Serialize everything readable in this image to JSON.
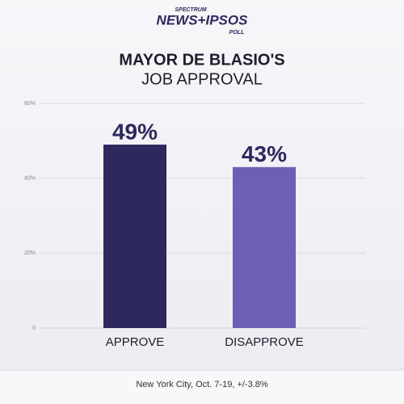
{
  "logo": {
    "top": "SPECTRUM",
    "main": "NEWS+IPSOS",
    "bottom": "POLL"
  },
  "chart_data": {
    "type": "bar",
    "title": "MAYOR DE BLASIO'S",
    "subtitle": "JOB APPROVAL",
    "categories": [
      "APPROVE",
      "DISAPPROVE"
    ],
    "values": [
      49,
      43
    ],
    "value_labels": [
      "49%",
      "43%"
    ],
    "colors": [
      "#2d295f",
      "#6c5fb6"
    ],
    "ylim": [
      0,
      60
    ],
    "yticks": [
      0,
      {
        "value": 20,
        "label": "20%"
      },
      {
        "value": 40,
        "label": "40%"
      },
      {
        "value": 60,
        "label": "60%"
      }
    ],
    "grid": true,
    "footnote": "New York City, Oct. 7-19, +/-3.8%"
  }
}
